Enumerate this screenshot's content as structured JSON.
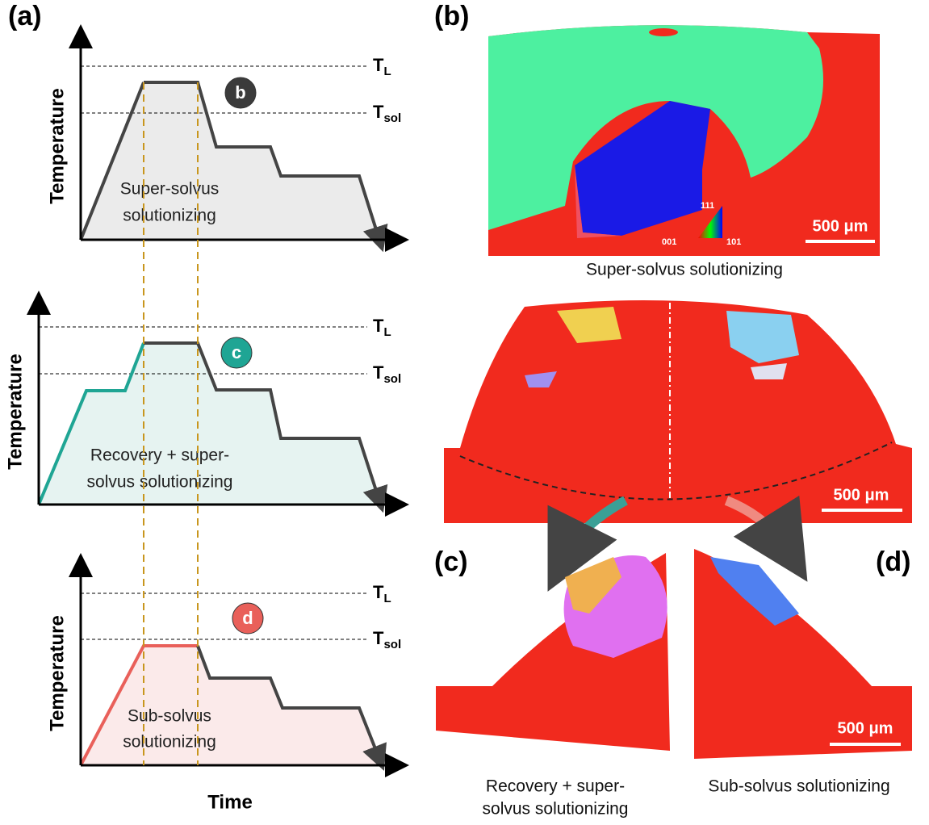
{
  "panels": {
    "a": "(a)",
    "b": "(b)",
    "c": "(c)",
    "d": "(d)"
  },
  "profiles": [
    {
      "y_label": "Temperature",
      "liquidus": {
        "main": "T",
        "sub": "L"
      },
      "solidus": {
        "main": "T",
        "sub": "sol"
      },
      "badge": "b",
      "lines": [
        "Super-solvus",
        "solutionizing"
      ]
    },
    {
      "y_label": "Temperature",
      "liquidus": {
        "main": "T",
        "sub": "L"
      },
      "solidus": {
        "main": "T",
        "sub": "sol"
      },
      "badge": "c",
      "lines": [
        "Recovery + super-",
        "solvus solutionizing"
      ]
    },
    {
      "y_label": "Temperature",
      "liquidus": {
        "main": "T",
        "sub": "L"
      },
      "solidus": {
        "main": "T",
        "sub": "sol"
      },
      "badge": "d",
      "lines": [
        "Sub-solvus",
        "solutionizing"
      ]
    }
  ],
  "x_label": "Time",
  "maps": {
    "b_caption": "Super-solvus solutionizing",
    "scale_b": "500 μm",
    "scale_mid": "500 μm",
    "scale_cd": "500 μm",
    "ipf": {
      "top": "111",
      "left": "001",
      "right": "101"
    },
    "c_caption": [
      "Recovery + super-",
      "solvus solutionizing"
    ],
    "d_caption": "Sub-solvus solutionizing"
  }
}
